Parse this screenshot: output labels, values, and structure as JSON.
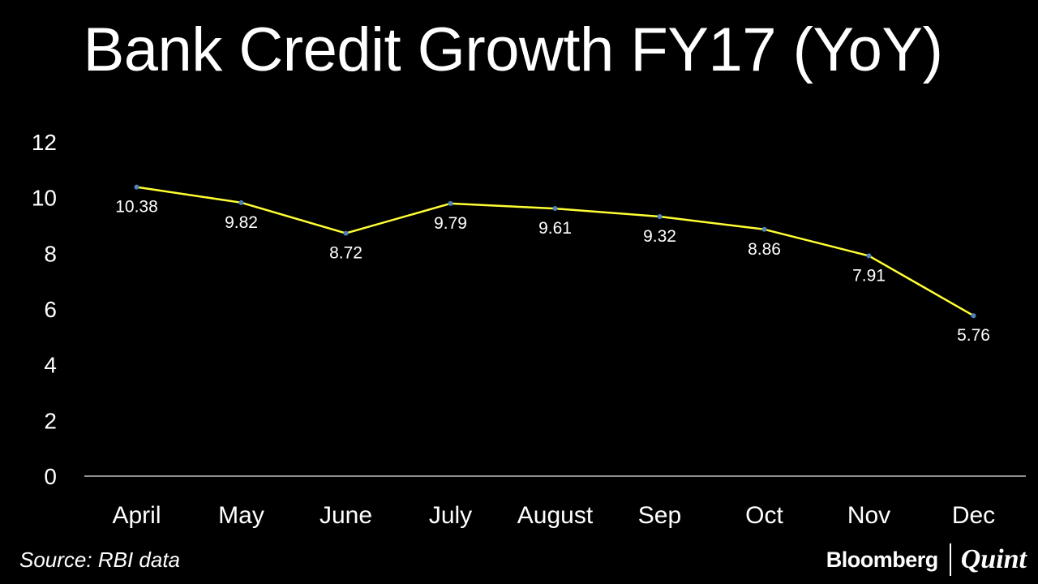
{
  "title": "Bank Credit Growth FY17 (YoY)",
  "source": "Source: RBI data",
  "brand": {
    "left": "Bloomberg",
    "right": "Quint"
  },
  "colors": {
    "background": "#000000",
    "line": "#ffff33",
    "marker": "#4f81bd",
    "text": "#ffffff",
    "axis": "#bfbfbf"
  },
  "chart_data": {
    "type": "line",
    "title": "Bank Credit Growth FY17 (YoY)",
    "categories": [
      "April",
      "May",
      "June",
      "July",
      "August",
      "Sep",
      "Oct",
      "Nov",
      "Dec"
    ],
    "series": [
      {
        "values": [
          10.38,
          9.82,
          8.72,
          9.79,
          9.61,
          9.32,
          8.86,
          7.91,
          5.76
        ],
        "data_labels": [
          "10.38",
          "9.82",
          "8.72",
          "9.79",
          "9.61",
          "9.32",
          "8.86",
          "7.91",
          "5.76"
        ]
      }
    ],
    "y_ticks": [
      0,
      2,
      4,
      6,
      8,
      10,
      12
    ],
    "ylim": [
      0,
      12
    ],
    "grid": false,
    "legend": "none",
    "xlabel": "",
    "ylabel": ""
  }
}
